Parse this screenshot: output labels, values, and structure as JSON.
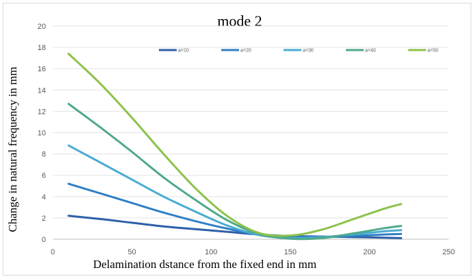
{
  "chart_data": {
    "type": "line",
    "title": "mode 2",
    "xlabel": "Delamination dstance from the fixed end in mm",
    "ylabel": "Change in natural frequency in mm",
    "xlim": [
      0,
      250
    ],
    "ylim": [
      0,
      20
    ],
    "xticks": [
      0,
      50,
      100,
      150,
      200,
      250
    ],
    "yticks": [
      0,
      2,
      4,
      6,
      8,
      10,
      12,
      14,
      16,
      18,
      20
    ],
    "xtick_labels": [
      "0",
      "50",
      "100",
      "150",
      "200",
      "250"
    ],
    "ytick_labels": [
      "0",
      "2",
      "4",
      "6",
      "8",
      "10",
      "12",
      "14",
      "16",
      "18",
      "20"
    ],
    "grid": "horizontal",
    "legend_position": "top-right",
    "series": [
      {
        "name": "a=10",
        "color": "#2e5fa8",
        "x": [
          10,
          30,
          50,
          70,
          90,
          110,
          130,
          150,
          170,
          190,
          210,
          220
        ],
        "y": [
          2.2,
          1.9,
          1.55,
          1.2,
          0.95,
          0.7,
          0.45,
          0.3,
          0.25,
          0.2,
          0.15,
          0.1
        ]
      },
      {
        "name": "a=20",
        "color": "#2f7fc4",
        "x": [
          10,
          30,
          50,
          70,
          90,
          110,
          130,
          150,
          170,
          190,
          210,
          220
        ],
        "y": [
          5.2,
          4.3,
          3.4,
          2.5,
          1.7,
          1.0,
          0.45,
          0.25,
          0.2,
          0.3,
          0.45,
          0.5
        ]
      },
      {
        "name": "a=30",
        "color": "#49acd2",
        "x": [
          10,
          30,
          50,
          70,
          90,
          110,
          130,
          150,
          170,
          190,
          210,
          220
        ],
        "y": [
          8.8,
          7.2,
          5.6,
          4.0,
          2.6,
          1.3,
          0.4,
          0.1,
          0.2,
          0.45,
          0.75,
          0.85
        ]
      },
      {
        "name": "a=40",
        "color": "#4ea98a",
        "x": [
          10,
          30,
          50,
          70,
          90,
          110,
          130,
          150,
          170,
          190,
          210,
          220
        ],
        "y": [
          12.7,
          10.5,
          8.2,
          5.8,
          3.7,
          1.8,
          0.5,
          0.05,
          0.1,
          0.55,
          1.05,
          1.25
        ]
      },
      {
        "name": "a=50",
        "color": "#8cc24b",
        "x": [
          10,
          30,
          50,
          70,
          90,
          110,
          130,
          150,
          170,
          190,
          210,
          220
        ],
        "y": [
          17.4,
          14.6,
          11.4,
          8.0,
          4.8,
          2.2,
          0.6,
          0.35,
          0.9,
          1.9,
          2.9,
          3.3
        ]
      }
    ]
  }
}
